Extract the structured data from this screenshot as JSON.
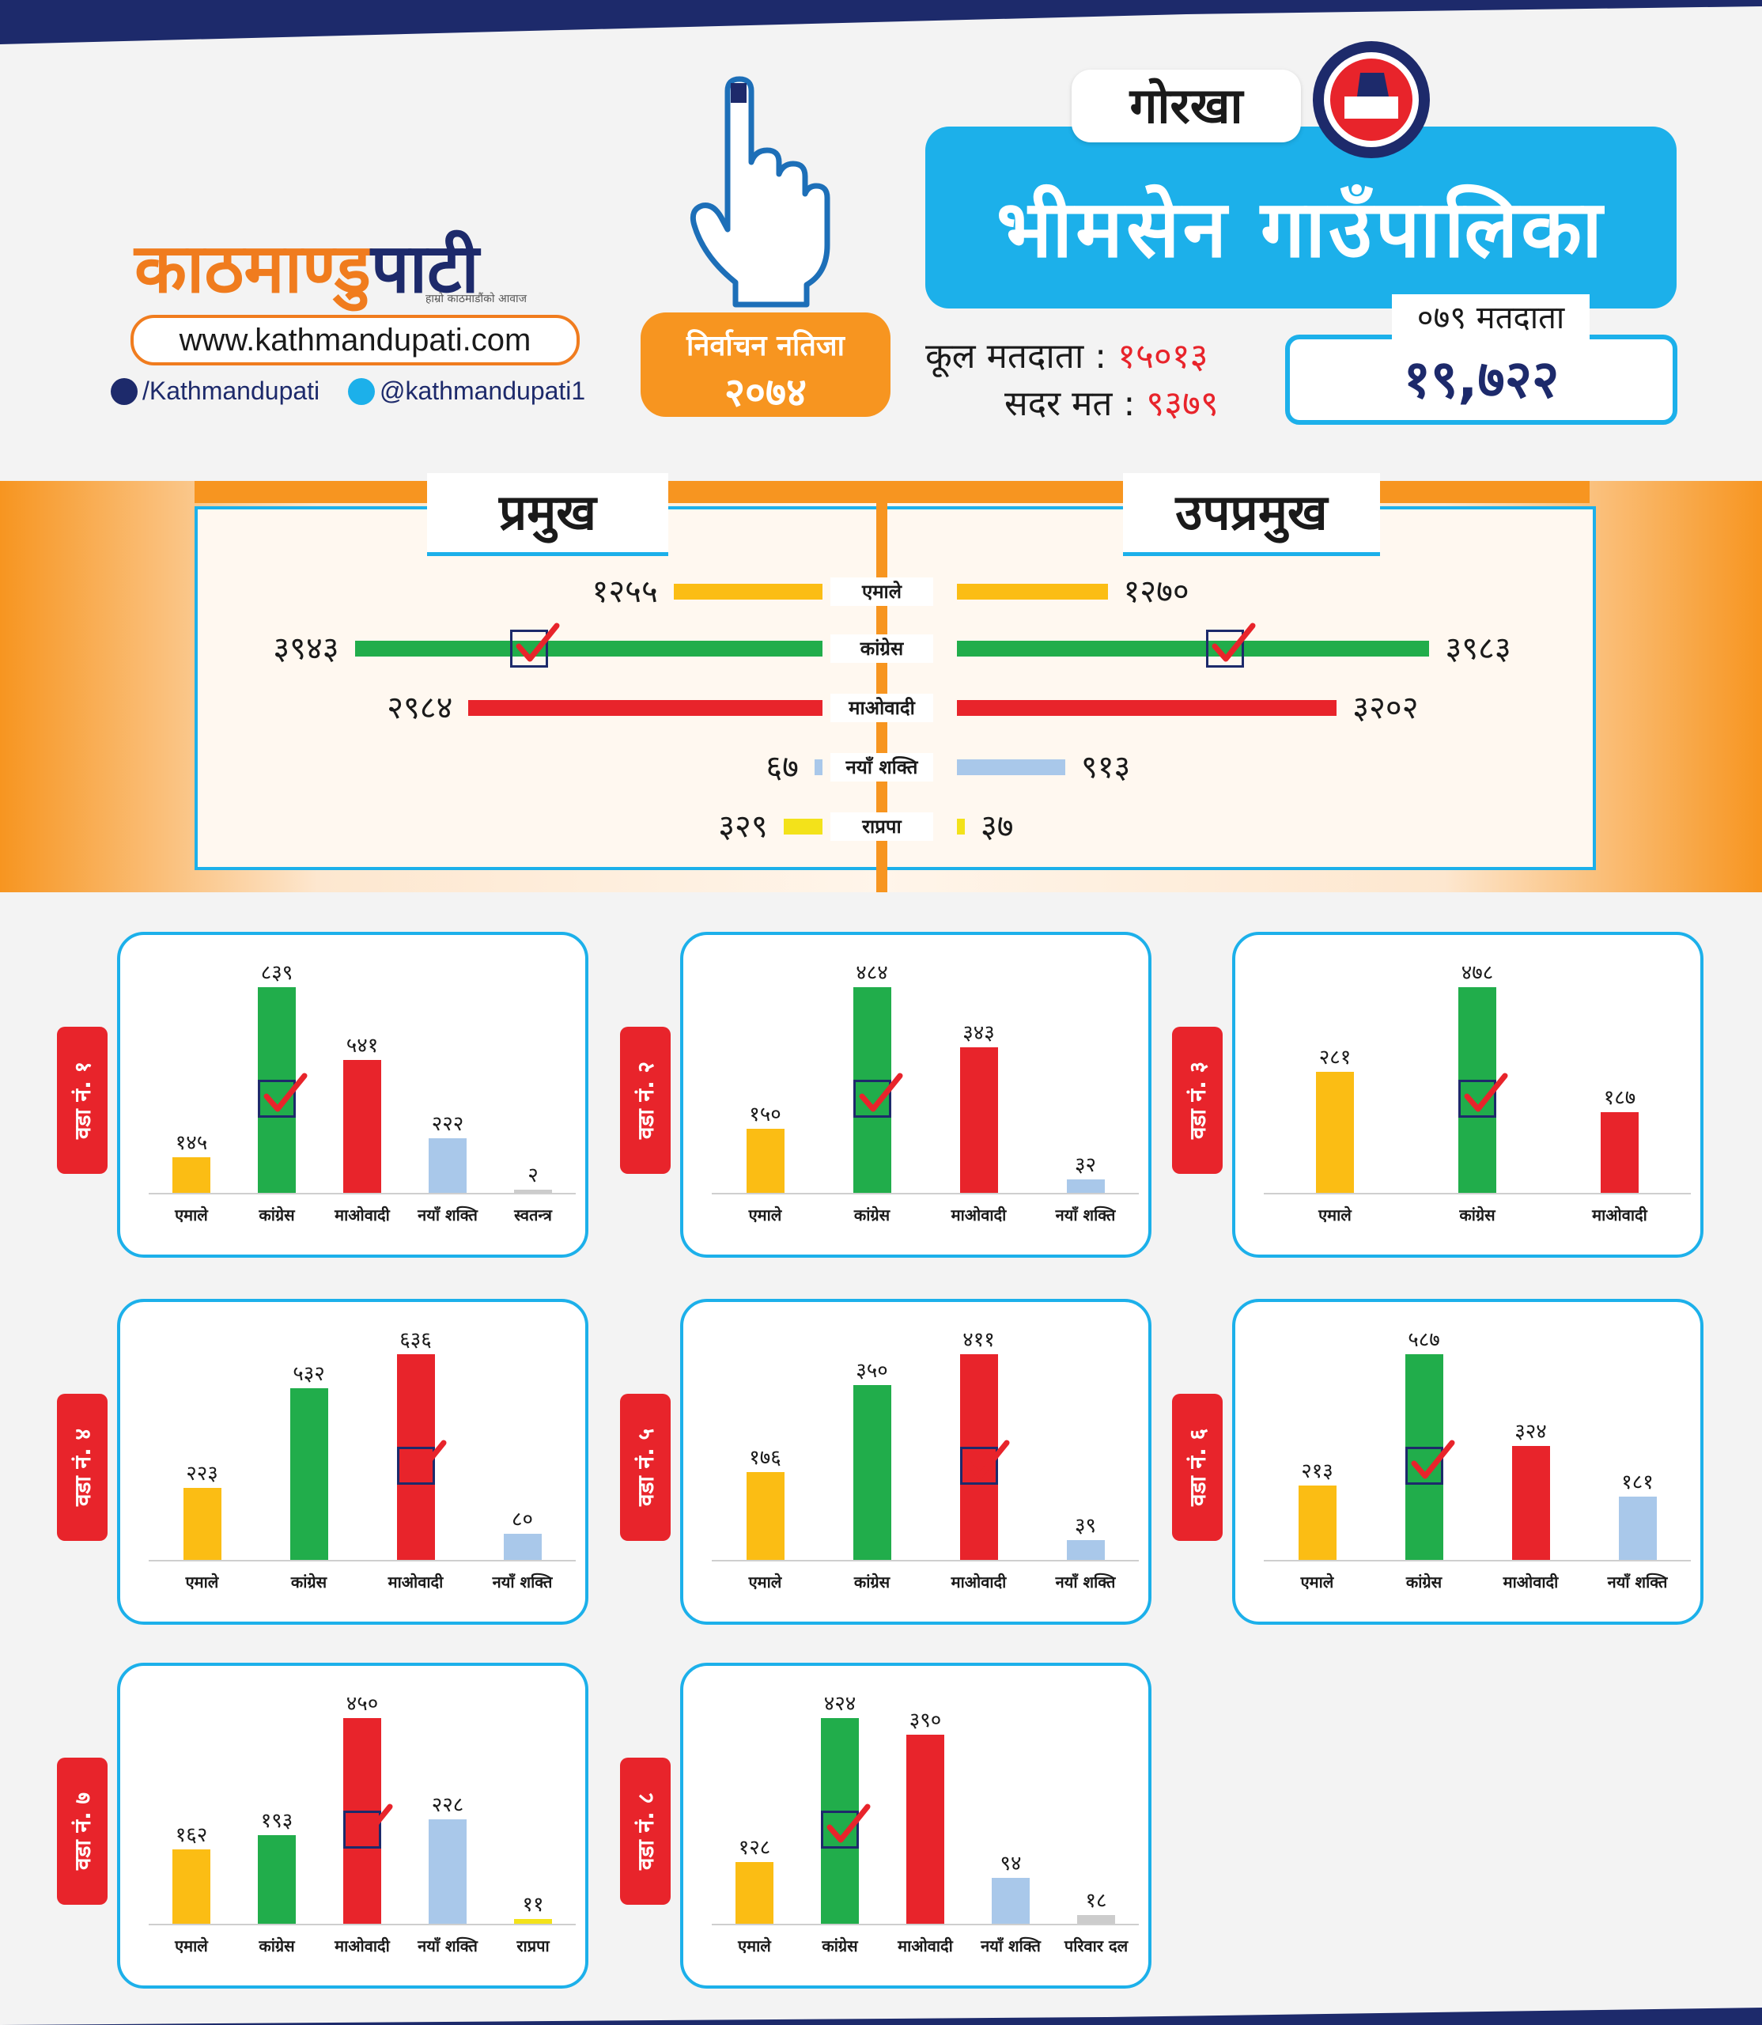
{
  "header": {
    "brand_orange": "काठमाण्डु",
    "brand_dark": "पाटी",
    "brand_tagline": "हाम्रो काठमाडौंको आवाज",
    "url": "www.kathmandupati.com",
    "facebook": "/Kathmandupati",
    "twitter": "@kathmandupati1",
    "badge_line1": "निर्वाचन नतिजा",
    "badge_line2": "२०७४",
    "district": "गोरखा",
    "municipality": "भीमसेन गाउँपालिका",
    "total_voters_label": "कूल मतदाता :",
    "total_voters_value": "१५०१३",
    "valid_votes_label": "सदर मत :",
    "valid_votes_value": "९३७९",
    "reg_label": "०७९ मतदाता",
    "reg_value": "१९,७२२"
  },
  "colors": {
    "uml": "#fbbd14",
    "congress": "#21ad4b",
    "maoist": "#e8242b",
    "naya_shakti": "#a9c8ea",
    "rpp": "#f3e21a",
    "other": "#cccccc",
    "accent_blue": "#1cb0ea",
    "accent_orange": "#f79520",
    "navy": "#1d2a6b"
  },
  "chart_data": [
    {
      "type": "bar",
      "orientation": "horizontal",
      "title": "प्रमुख",
      "categories": [
        "एमाले",
        "कांग्रेस",
        "माओवादी",
        "नयाँ शक्ति",
        "राप्रपा"
      ],
      "values": [
        1255,
        3943,
        2984,
        67,
        329
      ],
      "value_labels": [
        "१२५५",
        "३९४३",
        "२९८४",
        "६७",
        "३२९"
      ],
      "winner": "कांग्रेस"
    },
    {
      "type": "bar",
      "orientation": "horizontal",
      "title": "उपप्रमुख",
      "categories": [
        "एमाले",
        "कांग्रेस",
        "माओवादी",
        "नयाँ शक्ति",
        "राप्रपा"
      ],
      "values": [
        1270,
        3983,
        3202,
        913,
        37
      ],
      "value_labels": [
        "१२७०",
        "३९८३",
        "३२०२",
        "९१३",
        "३७"
      ],
      "winner": "कांग्रेस"
    },
    {
      "type": "bar",
      "title": "वडा नं. १",
      "categories": [
        "एमाले",
        "कांग्रेस",
        "माओवादी",
        "नयाँ शक्ति",
        "स्वतन्त्र"
      ],
      "values": [
        145,
        839,
        541,
        222,
        2
      ],
      "value_labels": [
        "१४५",
        "८३९",
        "५४१",
        "२२२",
        "२"
      ],
      "winner_index": 1
    },
    {
      "type": "bar",
      "title": "वडा नं. २",
      "categories": [
        "एमाले",
        "कांग्रेस",
        "माओवादी",
        "नयाँ शक्ति"
      ],
      "values": [
        150,
        484,
        343,
        32
      ],
      "value_labels": [
        "१५०",
        "४८४",
        "३४३",
        "३२"
      ],
      "winner_index": 1
    },
    {
      "type": "bar",
      "title": "वडा नं. ३",
      "categories": [
        "एमाले",
        "कांग्रेस",
        "माओवादी"
      ],
      "values": [
        281,
        478,
        187
      ],
      "value_labels": [
        "२८१",
        "४७८",
        "१८७"
      ],
      "winner_index": 1
    },
    {
      "type": "bar",
      "title": "वडा नं. ४",
      "categories": [
        "एमाले",
        "कांग्रेस",
        "माओवादी",
        "नयाँ शक्ति"
      ],
      "values": [
        223,
        532,
        636,
        80
      ],
      "value_labels": [
        "२२३",
        "५३२",
        "६३६",
        "८०"
      ],
      "winner_index": 2
    },
    {
      "type": "bar",
      "title": "वडा नं. ५",
      "categories": [
        "एमाले",
        "कांग्रेस",
        "माओवादी",
        "नयाँ शक्ति"
      ],
      "values": [
        176,
        350,
        411,
        39
      ],
      "value_labels": [
        "१७६",
        "३५०",
        "४११",
        "३९"
      ],
      "winner_index": 2
    },
    {
      "type": "bar",
      "title": "वडा नं. ६",
      "categories": [
        "एमाले",
        "कांग्रेस",
        "माओवादी",
        "नयाँ शक्ति"
      ],
      "values": [
        213,
        587,
        324,
        181
      ],
      "value_labels": [
        "२१३",
        "५८७",
        "३२४",
        "१८१"
      ],
      "winner_index": 1
    },
    {
      "type": "bar",
      "title": "वडा नं. ७",
      "categories": [
        "एमाले",
        "कांग्रेस",
        "माओवादी",
        "नयाँ शक्ति",
        "राप्रपा"
      ],
      "values": [
        162,
        193,
        450,
        228,
        11
      ],
      "value_labels": [
        "१६२",
        "१९३",
        "४५०",
        "२२८",
        "११"
      ],
      "winner_index": 2
    },
    {
      "type": "bar",
      "title": "वडा नं. ८",
      "categories": [
        "एमाले",
        "कांग्रेस",
        "माओवादी",
        "नयाँ शक्ति",
        "परिवार दल"
      ],
      "values": [
        128,
        424,
        390,
        94,
        18
      ],
      "value_labels": [
        "१२८",
        "४२४",
        "३९०",
        "९४",
        "१८"
      ],
      "winner_index": 1
    }
  ]
}
